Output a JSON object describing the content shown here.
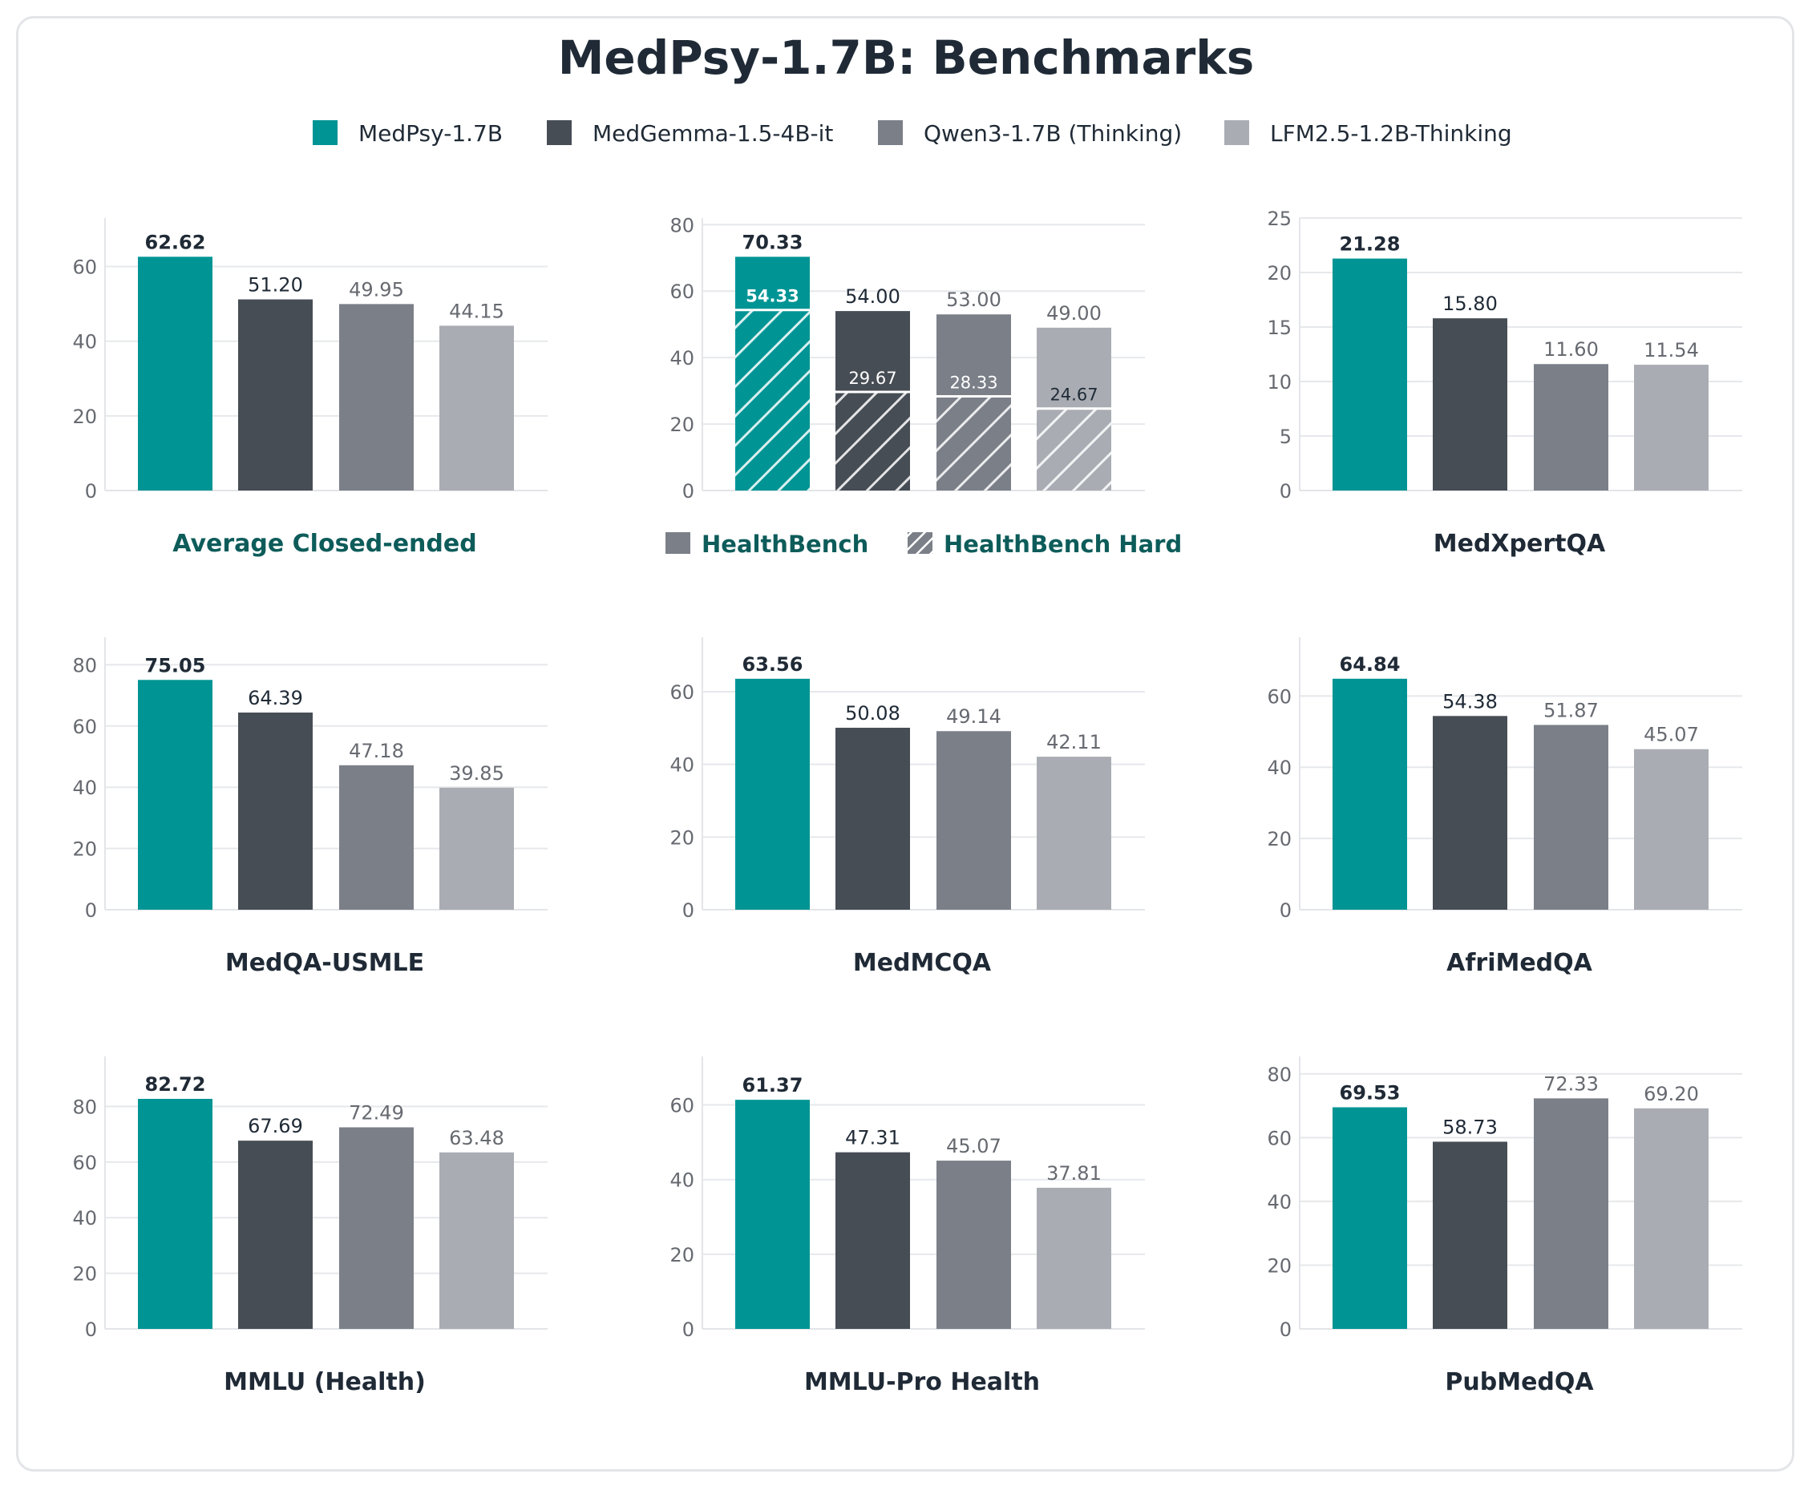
{
  "title": "MedPsy-1.7B: Benchmarks",
  "colors": {
    "teal": "#009494",
    "dark": "#474d55",
    "mid": "#7b7f88",
    "light": "#a9adb3",
    "text": "#1f2a36",
    "label_teal": "#0d5c5a",
    "grid": "#e6e8eb",
    "tick": "#666a70"
  },
  "legend": {
    "items": [
      {
        "label": "MedPsy-1.7B",
        "color": "#009494"
      },
      {
        "label": "MedGemma-1.5-4B-it",
        "color": "#474d55"
      },
      {
        "label": "Qwen3-1.7B (Thinking)",
        "color": "#7b7f88"
      },
      {
        "label": "LFM2.5-1.2B-Thinking",
        "color": "#a9adb3"
      }
    ]
  },
  "chart_data": [
    {
      "type": "bar",
      "title": "Average Closed-ended",
      "title_color": "teal",
      "categories": [
        "MedPsy-1.7B",
        "MedGemma-1.5-4B-it",
        "Qwen3-1.7B (Thinking)",
        "LFM2.5-1.2B-Thinking"
      ],
      "values": [
        62.62,
        51.2,
        49.95,
        44.15
      ],
      "value_labels": [
        "62.62",
        "51.20",
        "49.95",
        "44.15"
      ],
      "ylim": [
        0,
        73
      ],
      "yticks": [
        "0",
        "20",
        "40",
        "60"
      ],
      "grid": true
    },
    {
      "type": "bar",
      "title": "",
      "categories": [
        "MedPsy-1.7B",
        "MedGemma-1.5-4B-it",
        "Qwen3-1.7B (Thinking)",
        "LFM2.5-1.2B-Thinking"
      ],
      "series": [
        {
          "name": "HealthBench",
          "values": [
            70.33,
            54.0,
            53.0,
            49.0
          ],
          "value_labels": [
            "70.33",
            "54.00",
            "53.00",
            "49.00"
          ]
        },
        {
          "name": "HealthBench Hard",
          "values": [
            54.33,
            29.67,
            28.33,
            24.67
          ],
          "value_labels": [
            "54.33",
            "29.67",
            "28.33",
            "24.67"
          ],
          "hatched": true
        }
      ],
      "ylim": [
        0,
        82
      ],
      "yticks": [
        "0",
        "20",
        "40",
        "60",
        "80"
      ],
      "grid": true,
      "legend_position": "bottom"
    },
    {
      "type": "bar",
      "title": "MedXpertQA",
      "categories": [
        "MedPsy-1.7B",
        "MedGemma-1.5-4B-it",
        "Qwen3-1.7B (Thinking)",
        "LFM2.5-1.2B-Thinking"
      ],
      "values": [
        21.28,
        15.8,
        11.6,
        11.54
      ],
      "value_labels": [
        "21.28",
        "15.80",
        "11.60",
        "11.54"
      ],
      "ylim": [
        0,
        25
      ],
      "yticks": [
        "0",
        "5",
        "10",
        "15",
        "20",
        "25"
      ],
      "grid": true
    },
    {
      "type": "bar",
      "title": "MedQA-USMLE",
      "categories": [
        "MedPsy-1.7B",
        "MedGemma-1.5-4B-it",
        "Qwen3-1.7B (Thinking)",
        "LFM2.5-1.2B-Thinking"
      ],
      "values": [
        75.05,
        64.39,
        47.18,
        39.85
      ],
      "value_labels": [
        "75.05",
        "64.39",
        "47.18",
        "39.85"
      ],
      "ylim": [
        0,
        89
      ],
      "yticks": [
        "0",
        "20",
        "40",
        "60",
        "80"
      ],
      "grid": true
    },
    {
      "type": "bar",
      "title": "MedMCQA",
      "categories": [
        "MedPsy-1.7B",
        "MedGemma-1.5-4B-it",
        "Qwen3-1.7B (Thinking)",
        "LFM2.5-1.2B-Thinking"
      ],
      "values": [
        63.56,
        50.08,
        49.14,
        42.11
      ],
      "value_labels": [
        "63.56",
        "50.08",
        "49.14",
        "42.11"
      ],
      "ylim": [
        0,
        75
      ],
      "yticks": [
        "0",
        "20",
        "40",
        "60"
      ],
      "grid": true
    },
    {
      "type": "bar",
      "title": "AfriMedQA",
      "categories": [
        "MedPsy-1.7B",
        "MedGemma-1.5-4B-it",
        "Qwen3-1.7B (Thinking)",
        "LFM2.5-1.2B-Thinking"
      ],
      "values": [
        64.84,
        54.38,
        51.87,
        45.07
      ],
      "value_labels": [
        "64.84",
        "54.38",
        "51.87",
        "45.07"
      ],
      "ylim": [
        0,
        76.5
      ],
      "yticks": [
        "0",
        "20",
        "40",
        "60"
      ],
      "grid": true
    },
    {
      "type": "bar",
      "title": "MMLU (Health)",
      "categories": [
        "MedPsy-1.7B",
        "MedGemma-1.5-4B-it",
        "Qwen3-1.7B (Thinking)",
        "LFM2.5-1.2B-Thinking"
      ],
      "values": [
        82.72,
        67.69,
        72.49,
        63.48
      ],
      "value_labels": [
        "82.72",
        "67.69",
        "72.49",
        "63.48"
      ],
      "ylim": [
        0,
        98
      ],
      "yticks": [
        "0",
        "20",
        "40",
        "60",
        "80"
      ],
      "grid": true
    },
    {
      "type": "bar",
      "title": "MMLU-Pro Health",
      "categories": [
        "MedPsy-1.7B",
        "MedGemma-1.5-4B-it",
        "Qwen3-1.7B (Thinking)",
        "LFM2.5-1.2B-Thinking"
      ],
      "values": [
        61.37,
        47.31,
        45.07,
        37.81
      ],
      "value_labels": [
        "61.37",
        "47.31",
        "45.07",
        "37.81"
      ],
      "ylim": [
        0,
        73
      ],
      "yticks": [
        "0",
        "20",
        "40",
        "60"
      ],
      "grid": true
    },
    {
      "type": "bar",
      "title": "PubMedQA",
      "categories": [
        "MedPsy-1.7B",
        "MedGemma-1.5-4B-it",
        "Qwen3-1.7B (Thinking)",
        "LFM2.5-1.2B-Thinking"
      ],
      "values": [
        69.53,
        58.73,
        72.33,
        69.2
      ],
      "value_labels": [
        "69.53",
        "58.73",
        "72.33",
        "69.20"
      ],
      "ylim": [
        0,
        85.5
      ],
      "yticks": [
        "0",
        "20",
        "40",
        "60",
        "80"
      ],
      "grid": true
    }
  ]
}
